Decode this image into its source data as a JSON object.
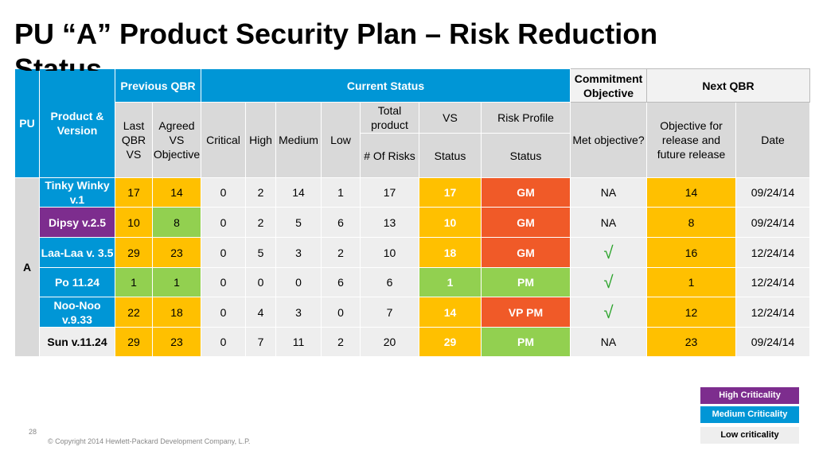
{
  "slide": {
    "title_line1": "PU “A” Product Security Plan – Risk Reduction",
    "title_line2": "Status",
    "page_number": "28",
    "copyright": "© Copyright 2014 Hewlett-Packard Development Company, L.P."
  },
  "headers": {
    "pu": "PU",
    "product_version": "Product & Version",
    "previous_qbr": "Previous QBR",
    "current_status": "Current Status",
    "commitment_objective": "Commitment Objective",
    "next_qbr": "Next QBR",
    "last_qbr_vs": "Last QBR VS",
    "agreed_vs_objective": "Agreed VS Objective",
    "critical": "Critical",
    "high": "High",
    "medium": "Medium",
    "low": "Low",
    "total_product": "Total product",
    "vs": "VS",
    "risk_profile": "Risk Profile",
    "met_objective": "Met objective?",
    "objective_future": "Objective for release and future release",
    "date": "Date",
    "num_of_risks": "# Of Risks",
    "status": "Status",
    "status2": "Status"
  },
  "pu_value": "A",
  "rows": [
    {
      "product": "Tinky Winky v.1",
      "last_qbr_vs": "17",
      "agreed": "14",
      "critical": "0",
      "high": "2",
      "medium": "14",
      "low": "1",
      "total": "17",
      "vs_status": "17",
      "risk": "GM",
      "met": "NA",
      "objective": "14",
      "date": "09/24/14"
    },
    {
      "product": "Dipsy v.2.5",
      "last_qbr_vs": "10",
      "agreed": "8",
      "critical": "0",
      "high": "2",
      "medium": "5",
      "low": "6",
      "total": "13",
      "vs_status": "10",
      "risk": "GM",
      "met": "NA",
      "objective": "8",
      "date": "09/24/14"
    },
    {
      "product": "Laa-Laa v. 3.5",
      "last_qbr_vs": "29",
      "agreed": "23",
      "critical": "0",
      "high": "5",
      "medium": "3",
      "low": "2",
      "total": "10",
      "vs_status": "18",
      "risk": "GM",
      "met": "√",
      "objective": "16",
      "date": "12/24/14"
    },
    {
      "product": "Po 11.24",
      "last_qbr_vs": "1",
      "agreed": "1",
      "critical": "0",
      "high": "0",
      "medium": "0",
      "low": "6",
      "total": "6",
      "vs_status": "1",
      "risk": "PM",
      "met": "√",
      "objective": "1",
      "date": "12/24/14"
    },
    {
      "product": "Noo-Noo v.9.33",
      "last_qbr_vs": "22",
      "agreed": "18",
      "critical": "0",
      "high": "4",
      "medium": "3",
      "low": "0",
      "total": "7",
      "vs_status": "14",
      "risk": "VP PM",
      "met": "√",
      "objective": "12",
      "date": "12/24/14"
    },
    {
      "product": "Sun v.11.24",
      "last_qbr_vs": "29",
      "agreed": "23",
      "critical": "0",
      "high": "7",
      "medium": "11",
      "low": "2",
      "total": "20",
      "vs_status": "29",
      "risk": "PM",
      "met": "NA",
      "objective": "23",
      "date": "09/24/14"
    }
  ],
  "legend": {
    "high": "High Criticality",
    "medium": "Medium Criticality",
    "low": "Low criticality"
  },
  "colors": {
    "blue": "#0096d6",
    "yellow": "#ffc000",
    "orange_yellow": "#ffc000",
    "green": "#92d050",
    "red_orange": "#f05a28",
    "purple": "#7d2d8e",
    "gray": "#d9d9d9"
  }
}
